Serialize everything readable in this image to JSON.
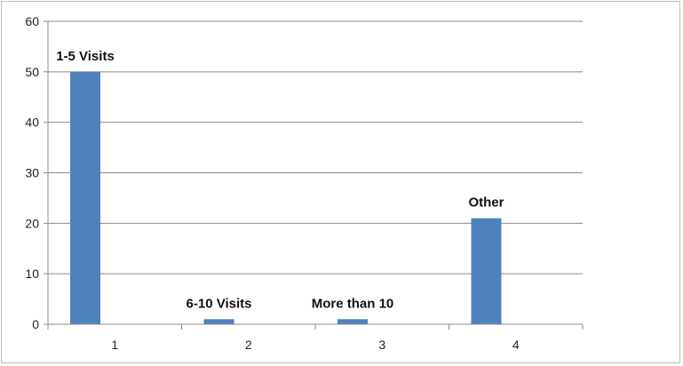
{
  "chart_data": {
    "type": "bar",
    "categories": [
      "1",
      "2",
      "3",
      "4"
    ],
    "values": [
      50,
      1,
      1,
      21
    ],
    "data_labels": [
      "1-5 Visits",
      "6-10 Visits",
      "More than 10",
      "Other"
    ],
    "title": "",
    "xlabel": "",
    "ylabel": "",
    "ylim": [
      0,
      60
    ],
    "yticks": [
      0,
      10,
      20,
      30,
      40,
      50,
      60
    ],
    "grid": true,
    "legend": "none",
    "bar_color": "#4f81bd"
  }
}
